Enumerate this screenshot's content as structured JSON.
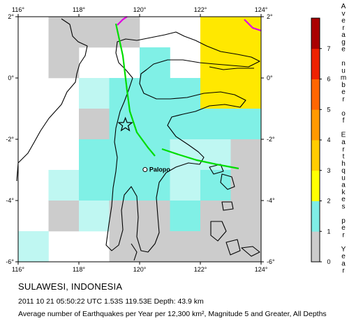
{
  "map": {
    "lon_ticks": [
      "116°",
      "118°",
      "120°",
      "122°",
      "124°"
    ],
    "lat_ticks": [
      "2°",
      "0°",
      "-2°",
      "-4°",
      "-6°"
    ],
    "extent": {
      "lon": [
        116,
        124
      ],
      "lat": [
        -6,
        2
      ]
    },
    "cell_size_deg": 1,
    "place_label": "Palopo",
    "epicenter": {
      "lon": 119.53,
      "lat": -1.53
    },
    "colors": {
      "level0": "#cccccc",
      "level_low": "#80f0e6",
      "level_mid": "#bff7f2",
      "level_high": "#ffe800",
      "coastline": "#000000",
      "plate_boundary": "#00dd00",
      "magenta_boundary": "#e000e0"
    },
    "grid": [
      [
        "none",
        "gray",
        "gray",
        "gray",
        "none",
        "none",
        "yellow",
        "yellow"
      ],
      [
        "none",
        "gray",
        "none",
        "none",
        "cyan",
        "none",
        "yellow",
        "yellow"
      ],
      [
        "none",
        "none",
        "light",
        "cyan",
        "cyan",
        "cyan",
        "yellow",
        "yellow"
      ],
      [
        "none",
        "none",
        "gray",
        "cyan",
        "cyan",
        "cyan",
        "cyan",
        "cyan"
      ],
      [
        "none",
        "none",
        "cyan",
        "cyan",
        "cyan",
        "light",
        "light",
        "gray"
      ],
      [
        "none",
        "light",
        "cyan",
        "cyan",
        "cyan",
        "light",
        "cyan",
        "gray"
      ],
      [
        "none",
        "gray",
        "light",
        "gray",
        "gray",
        "cyan",
        "gray",
        "gray"
      ],
      [
        "light",
        "none",
        "none",
        "gray",
        "gray",
        "gray",
        "gray",
        "gray"
      ]
    ]
  },
  "scale": {
    "title": "Average number of Earthquakes per Year",
    "labels": [
      "0",
      "1",
      "2",
      "3",
      "4",
      "5",
      "6",
      "7"
    ],
    "colors": [
      "#cccccc",
      "#7feee6",
      "#ffff00",
      "#ffcc00",
      "#ff9900",
      "#ff6600",
      "#ee2200",
      "#aa0000"
    ]
  },
  "caption": {
    "title": "SULAWESI, INDONESIA",
    "event": "2011 10 21 05:50:22 UTC 1.53S 119.53E Depth: 43.9 km",
    "desc": "Average number of Earthquakes per Year per 12,300 km², Magnitude 5 and Greater, All Depths"
  }
}
